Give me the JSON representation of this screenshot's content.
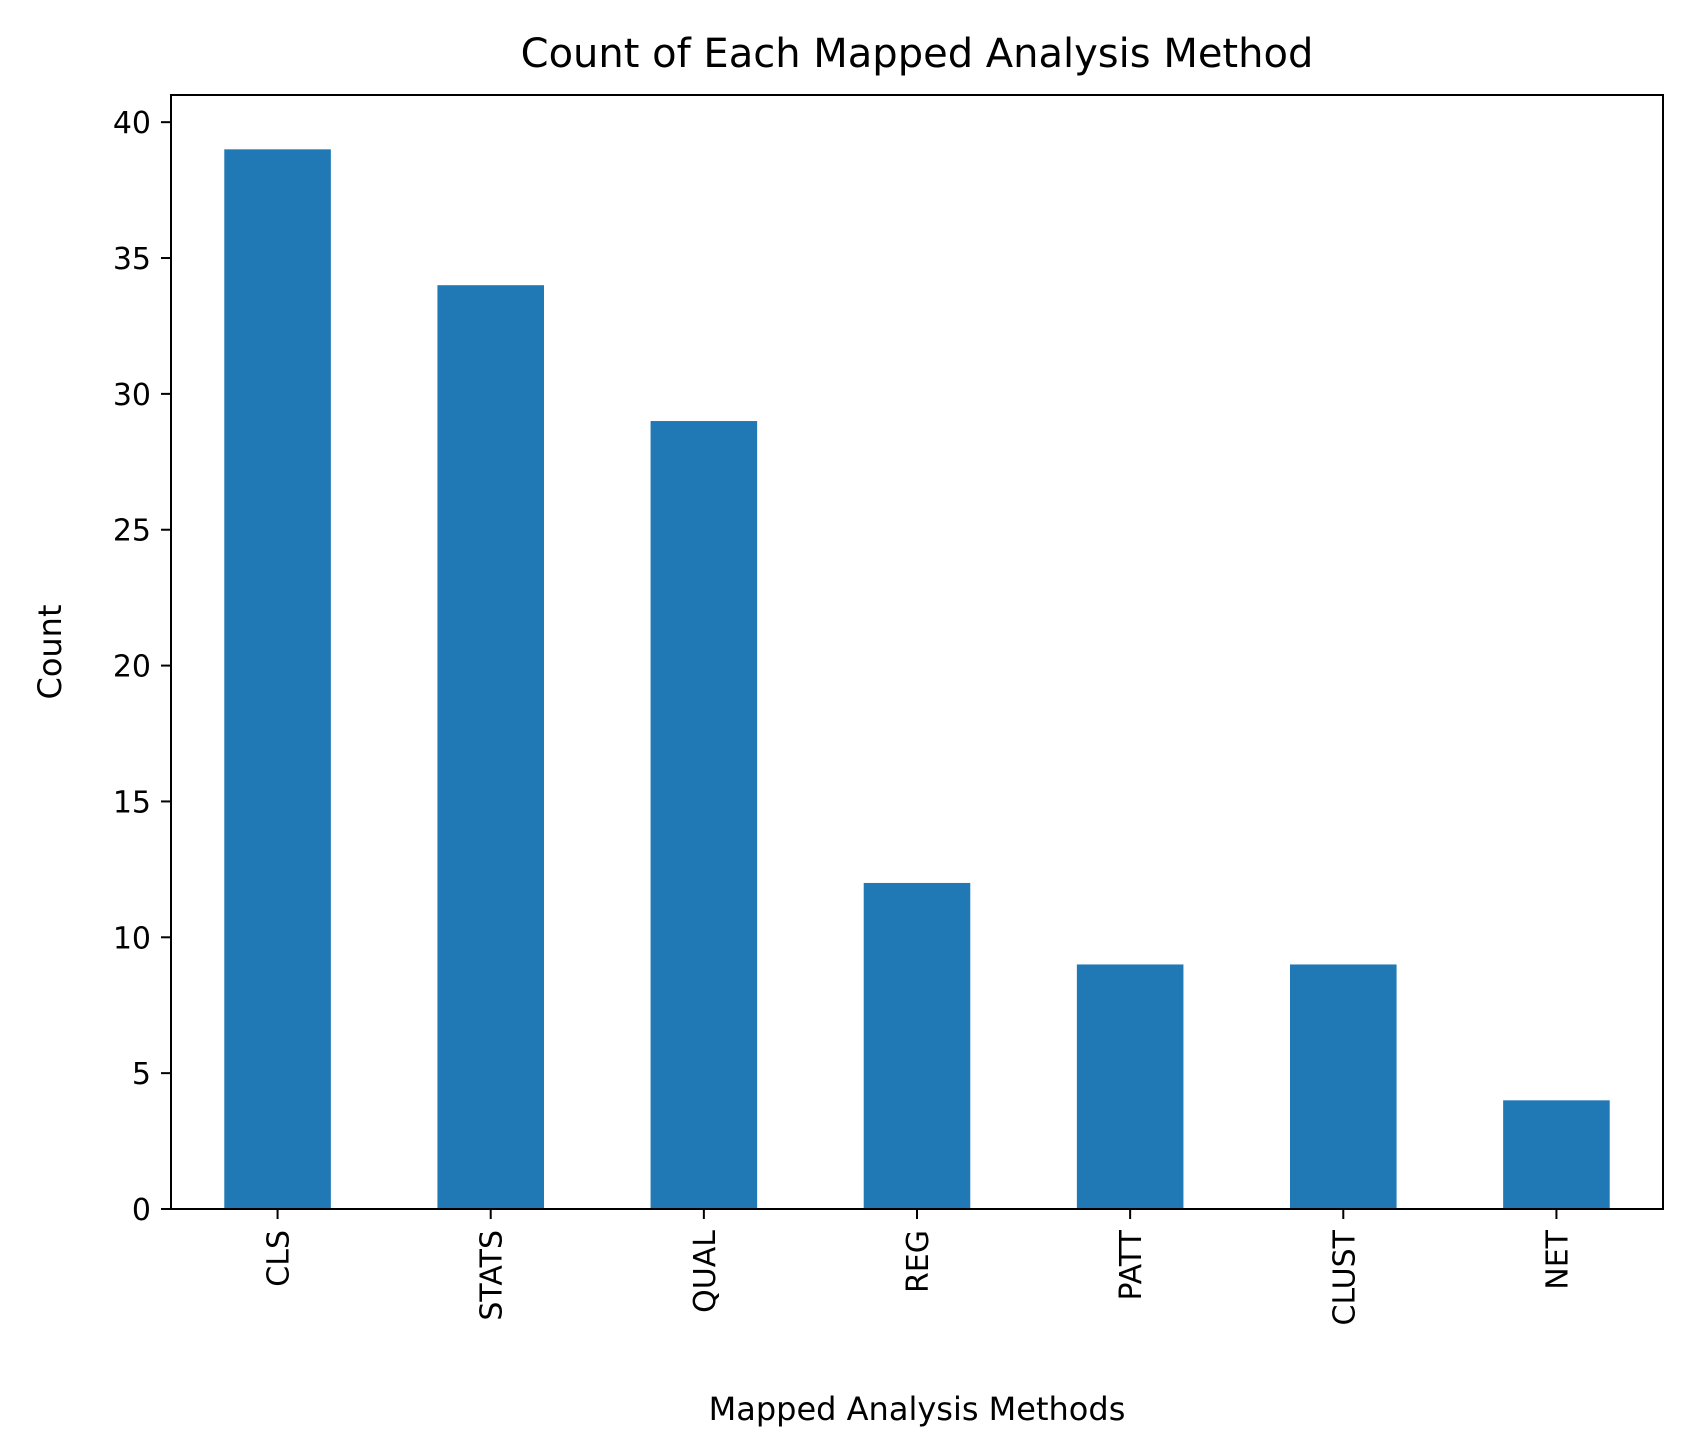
{
  "chart_data": {
    "type": "bar",
    "title": "Count of Each Mapped Analysis Method",
    "xlabel": "Mapped Analysis Methods",
    "ylabel": "Count",
    "categories": [
      "CLS",
      "STATS",
      "QUAL",
      "REG",
      "PATT",
      "CLUST",
      "NET"
    ],
    "values": [
      39,
      34,
      29,
      12,
      9,
      9,
      4
    ],
    "ylim": [
      0,
      41
    ],
    "yticks": [
      0,
      5,
      10,
      15,
      20,
      25,
      30,
      35,
      40
    ],
    "x_tick_rotation": "vertical",
    "grid": false,
    "legend": false,
    "bar_color": "#2078b4"
  }
}
